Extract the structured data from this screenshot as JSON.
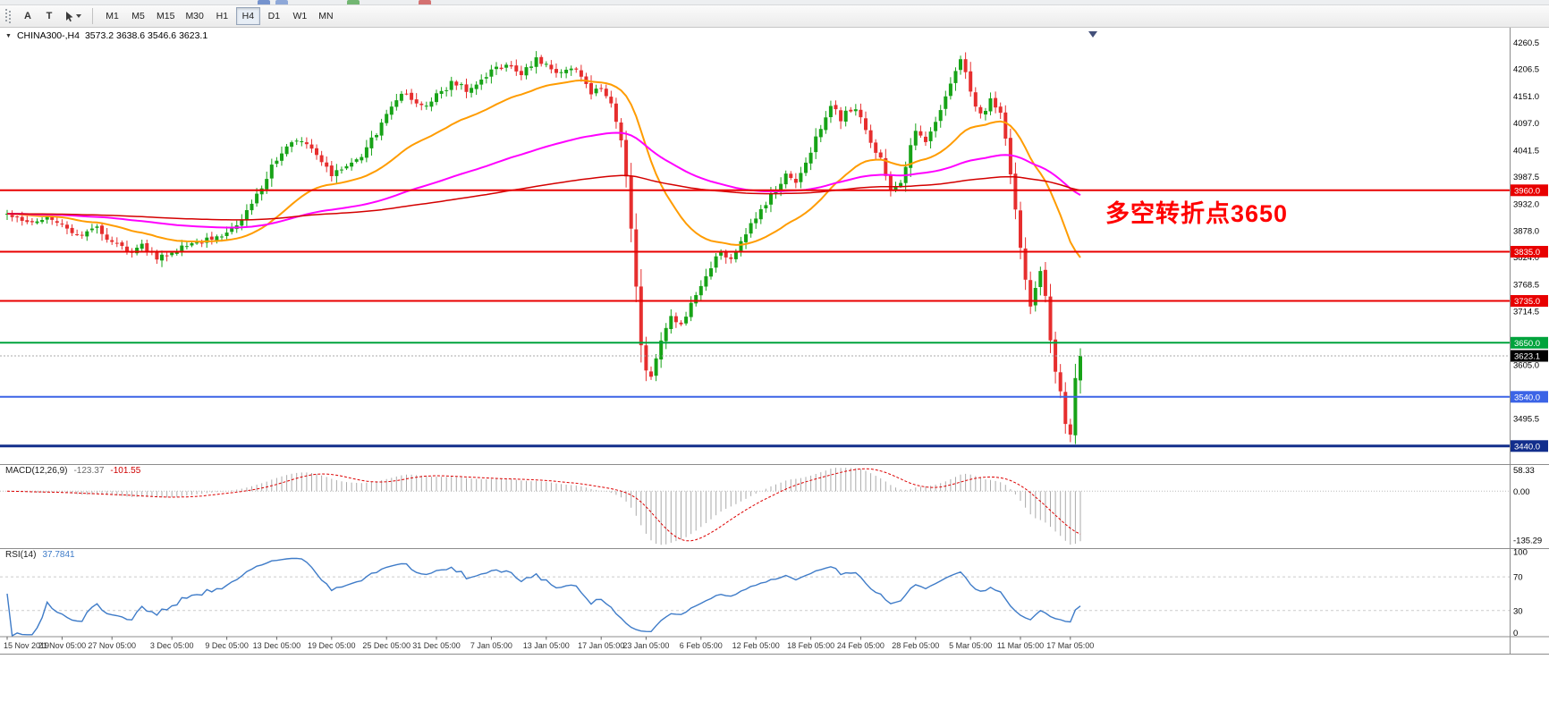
{
  "app": {
    "toolbar": {
      "tools": [
        {
          "label": "A",
          "name": "label-tool"
        },
        {
          "label": "T",
          "name": "text-tool"
        }
      ],
      "timeframes": [
        "M1",
        "M5",
        "M15",
        "M30",
        "H1",
        "H4",
        "D1",
        "W1",
        "MN"
      ],
      "active_timeframe": "H4"
    }
  },
  "chart": {
    "symbol_period": "CHINA300-,H4",
    "ohlc": "3573.2 3638.6 3546.6 3623.1",
    "collapse_icon": "▼",
    "annotation": {
      "text": "多空转折点3650",
      "color": "#ff0000"
    }
  },
  "chart_data": {
    "type": "candlestick",
    "title": "CHINA300-,H4",
    "symbol": "CHINA300-",
    "timeframe": "H4",
    "num_candles": 216,
    "seed": 12,
    "noise": 6.5,
    "wick": 10,
    "price_ylim": [
      3405,
      4285
    ],
    "anchors": [
      [
        0,
        3915
      ],
      [
        4,
        3895
      ],
      [
        8,
        3905
      ],
      [
        11,
        3895
      ],
      [
        14,
        3870
      ],
      [
        18,
        3885
      ],
      [
        21,
        3855
      ],
      [
        24,
        3835
      ],
      [
        27,
        3847
      ],
      [
        30,
        3824
      ],
      [
        33,
        3833
      ],
      [
        36,
        3852
      ],
      [
        40,
        3860
      ],
      [
        44,
        3874
      ],
      [
        48,
        3916
      ],
      [
        51,
        3966
      ],
      [
        54,
        4026
      ],
      [
        57,
        4063
      ],
      [
        60,
        4055
      ],
      [
        63,
        4018
      ],
      [
        65,
        3992
      ],
      [
        68,
        4006
      ],
      [
        71,
        4032
      ],
      [
        74,
        4076
      ],
      [
        76,
        4110
      ],
      [
        79,
        4156
      ],
      [
        82,
        4140
      ],
      [
        84,
        4126
      ],
      [
        86,
        4151
      ],
      [
        89,
        4178
      ],
      [
        92,
        4166
      ],
      [
        95,
        4186
      ],
      [
        97,
        4206
      ],
      [
        100,
        4216
      ],
      [
        103,
        4196
      ],
      [
        106,
        4229
      ],
      [
        108,
        4211
      ],
      [
        111,
        4196
      ],
      [
        114,
        4206
      ],
      [
        117,
        4161
      ],
      [
        119,
        4166
      ],
      [
        121,
        4131
      ],
      [
        123,
        4066
      ],
      [
        124,
        3986
      ],
      [
        125,
        3881
      ],
      [
        126,
        3761
      ],
      [
        127,
        3641
      ],
      [
        128,
        3591
      ],
      [
        129,
        3576
      ],
      [
        131,
        3651
      ],
      [
        133,
        3706
      ],
      [
        135,
        3686
      ],
      [
        137,
        3731
      ],
      [
        139,
        3771
      ],
      [
        141,
        3806
      ],
      [
        143,
        3836
      ],
      [
        145,
        3816
      ],
      [
        147,
        3861
      ],
      [
        150,
        3906
      ],
      [
        153,
        3951
      ],
      [
        156,
        3989
      ],
      [
        158,
        3973
      ],
      [
        161,
        4036
      ],
      [
        163,
        4091
      ],
      [
        165,
        4136
      ],
      [
        167,
        4106
      ],
      [
        169,
        4126
      ],
      [
        171,
        4111
      ],
      [
        173,
        4061
      ],
      [
        175,
        4021
      ],
      [
        177,
        3956
      ],
      [
        179,
        3976
      ],
      [
        181,
        4046
      ],
      [
        182,
        4076
      ],
      [
        184,
        4061
      ],
      [
        186,
        4096
      ],
      [
        188,
        4151
      ],
      [
        190,
        4206
      ],
      [
        191,
        4231
      ],
      [
        193,
        4161
      ],
      [
        195,
        4111
      ],
      [
        197,
        4141
      ],
      [
        199,
        4121
      ],
      [
        200,
        4061
      ],
      [
        201,
        3986
      ],
      [
        202,
        3916
      ],
      [
        203,
        3846
      ],
      [
        204,
        3781
      ],
      [
        205,
        3726
      ],
      [
        206,
        3756
      ],
      [
        207,
        3801
      ],
      [
        208,
        3741
      ],
      [
        209,
        3661
      ],
      [
        210,
        3591
      ],
      [
        211,
        3546
      ],
      [
        212,
        3491
      ],
      [
        213,
        3466
      ],
      [
        214,
        3573
      ],
      [
        215,
        3623
      ]
    ],
    "last_candle": {
      "open": 3573.2,
      "high": 3638.6,
      "low": 3546.6,
      "close": 3623.1
    },
    "candle_up_color": "#17a317",
    "candle_down_color": "#e62e2e",
    "y_axis_labels": [
      4260.5,
      4206.5,
      4151.0,
      4097.0,
      4041.5,
      3987.5,
      3932.0,
      3878.0,
      3824.0,
      3768.5,
      3714.5,
      3605.0,
      3495.5
    ],
    "x_labels": [
      [
        0,
        "15 Nov 2019"
      ],
      [
        11,
        "21 Nov 05:00"
      ],
      [
        21,
        "27 Nov 05:00"
      ],
      [
        33,
        "3 Dec 05:00"
      ],
      [
        44,
        "9 Dec 05:00"
      ],
      [
        54,
        "13 Dec 05:00"
      ],
      [
        65,
        "19 Dec 05:00"
      ],
      [
        76,
        "25 Dec 05:00"
      ],
      [
        86,
        "31 Dec 05:00"
      ],
      [
        97,
        "7 Jan 05:00"
      ],
      [
        108,
        "13 Jan 05:00"
      ],
      [
        119,
        "17 Jan 05:00"
      ],
      [
        128,
        "23 Jan 05:00"
      ],
      [
        139,
        "6 Feb 05:00"
      ],
      [
        150,
        "12 Feb 05:00"
      ],
      [
        161,
        "18 Feb 05:00"
      ],
      [
        171,
        "24 Feb 05:00"
      ],
      [
        182,
        "28 Feb 05:00"
      ],
      [
        193,
        "5 Mar 05:00"
      ],
      [
        203,
        "11 Mar 05:00"
      ],
      [
        213,
        "17 Mar 05:00"
      ]
    ],
    "moving_averages": [
      {
        "name": "ma-fast-orange",
        "period": 30,
        "color": "#ff9c00",
        "width": 2
      },
      {
        "name": "ma-medium-magenta",
        "period": 110,
        "color": "#ff00ff",
        "width": 2
      },
      {
        "name": "ma-slow-red",
        "period": 300,
        "color": "#d40000",
        "width": 1.5
      }
    ],
    "horizontal_lines": [
      {
        "value": 3960.0,
        "label": "3960.0",
        "color": "#e80000",
        "width": 2
      },
      {
        "value": 3835.0,
        "label": "3835.0",
        "color": "#e80000",
        "width": 2
      },
      {
        "value": 3735.0,
        "label": "3735.0",
        "color": "#e80000",
        "width": 2
      },
      {
        "value": 3650.0,
        "label": "3650.0",
        "color": "#00a33c",
        "width": 2
      },
      {
        "value": 3540.0,
        "label": "3540.0",
        "color": "#3c64e6",
        "width": 2
      },
      {
        "value": 3440.0,
        "label": "3440.0",
        "color": "#122e8c",
        "width": 3
      }
    ],
    "current_price": {
      "value": 3623.1,
      "label": "3623.1",
      "line_color": "#a8a8a8",
      "badge_color": "#000000"
    },
    "macd": {
      "label": "MACD(12,26,9)",
      "value_main": "-123.37",
      "value_signal": "-101.55",
      "fast": 12,
      "slow": 26,
      "signal": 9,
      "ylim": [
        -155,
        70
      ],
      "axis_labels": [
        58.33,
        0,
        -135.29
      ],
      "histogram_color": "#ababab",
      "signal_color": "#dd0000"
    },
    "rsi": {
      "label": "RSI(14)",
      "value": "37.7841",
      "period": 14,
      "ylim": [
        0,
        102
      ],
      "levels": [
        70,
        30
      ],
      "axis_labels": [
        100,
        70,
        30,
        0
      ],
      "line_color": "#3e7bc8",
      "level_color": "#cccccc"
    }
  }
}
